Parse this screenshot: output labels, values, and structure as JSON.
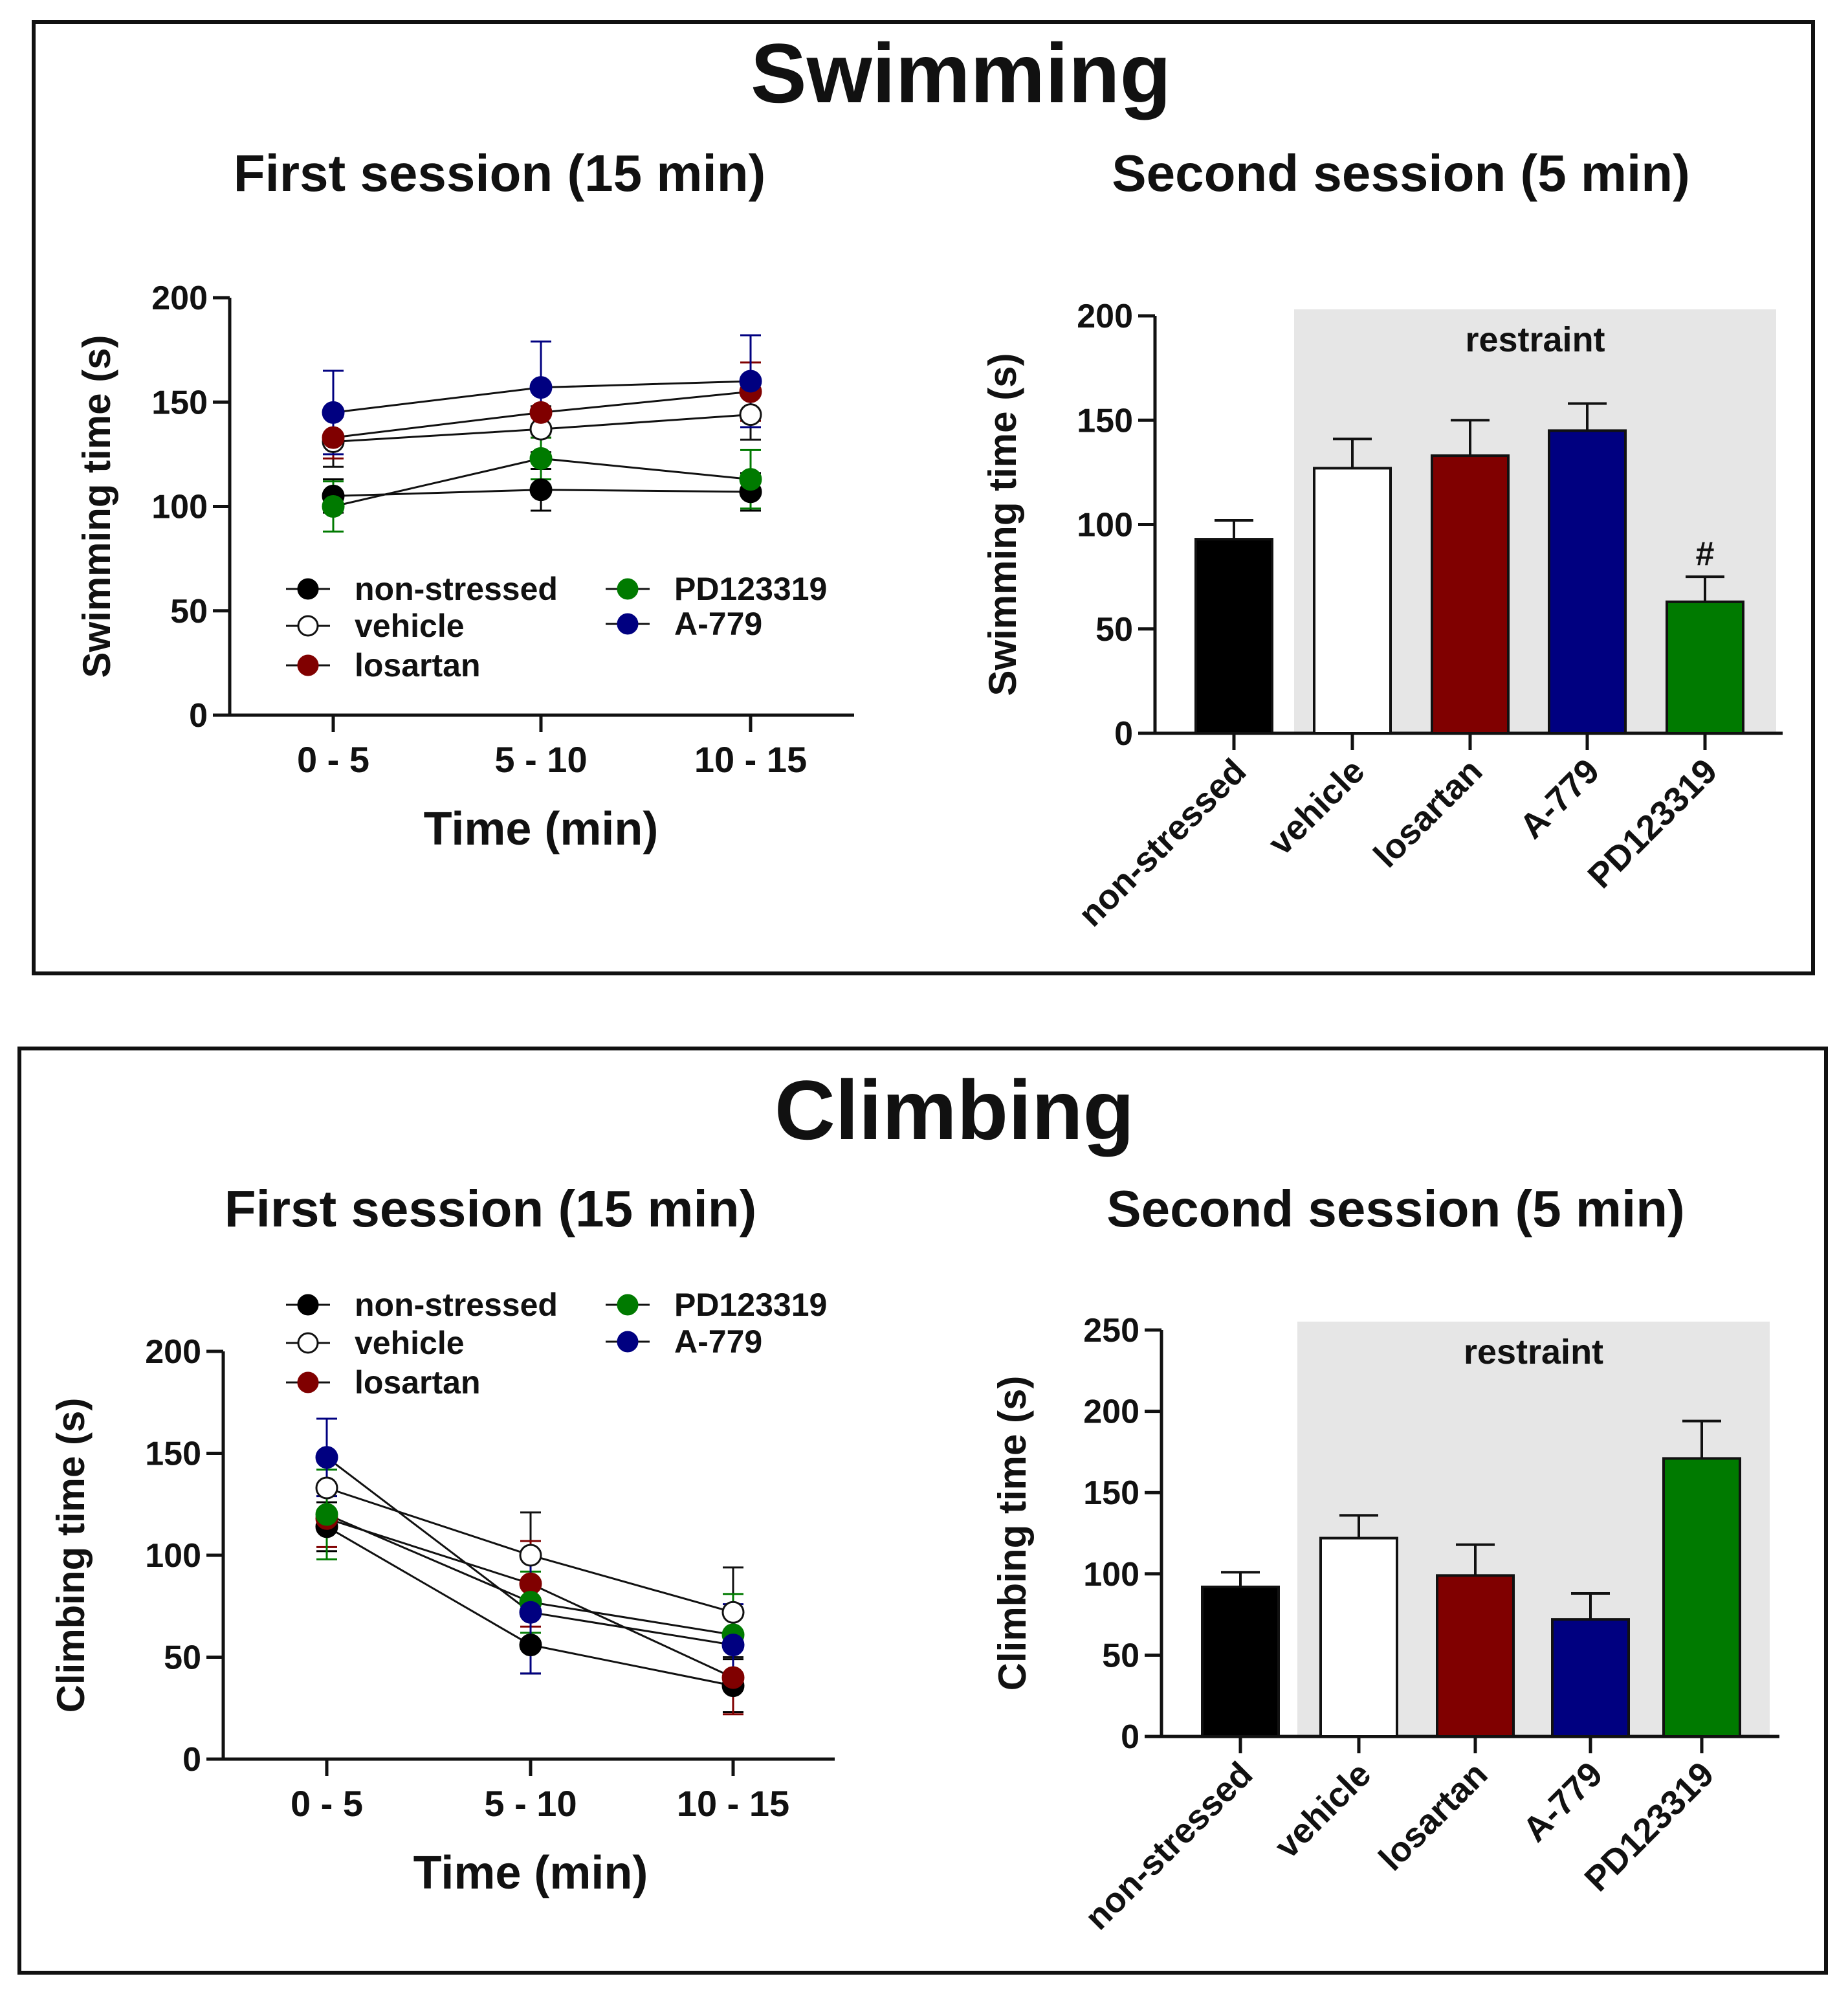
{
  "colors": {
    "non-stressed": "#000000",
    "vehicle": "#ffffff",
    "losartan": "#800000",
    "A-779": "#000080",
    "PD123319": "#007a00",
    "restraint_band": "#e6e6e6"
  },
  "panels": [
    {
      "title": "Swimming",
      "first_session_title": "First session (15 min)",
      "second_session_title": "Second session (5 min)"
    },
    {
      "title": "Climbing",
      "first_session_title": "First session (15 min)",
      "second_session_title": "Second session (5 min)"
    }
  ],
  "chart_data": [
    {
      "type": "line",
      "title": "First session (15 min)",
      "xlabel": "Time (min)",
      "ylabel": "Swimming time (s)",
      "categories": [
        "0 - 5",
        "5 - 10",
        "10 - 15"
      ],
      "ylim": [
        0,
        200
      ],
      "yticks": [
        0,
        50,
        100,
        150,
        200
      ],
      "legend": [
        "non-stressed",
        "vehicle",
        "losartan",
        "PD123319",
        "A-779"
      ],
      "series": [
        {
          "name": "non-stressed",
          "values": [
            105,
            108,
            107
          ],
          "errors": [
            8,
            10,
            9
          ]
        },
        {
          "name": "vehicle",
          "values": [
            131,
            137,
            144
          ],
          "errors": [
            12,
            11,
            12
          ]
        },
        {
          "name": "losartan",
          "values": [
            133,
            145,
            155
          ],
          "errors": [
            10,
            12,
            14
          ]
        },
        {
          "name": "PD123319",
          "values": [
            100,
            123,
            113
          ],
          "errors": [
            12,
            10,
            14
          ]
        },
        {
          "name": "A-779",
          "values": [
            145,
            157,
            160
          ],
          "errors": [
            20,
            22,
            22
          ]
        }
      ]
    },
    {
      "type": "bar",
      "title": "Second session (5 min)",
      "ylabel": "Swimming time (s)",
      "categories": [
        "non-stressed",
        "vehicle",
        "losartan",
        "A-779",
        "PD123319"
      ],
      "values": [
        93,
        127,
        133,
        145,
        63
      ],
      "errors": [
        9,
        14,
        17,
        13,
        12
      ],
      "ylim": [
        0,
        200
      ],
      "yticks": [
        0,
        50,
        100,
        150,
        200
      ],
      "band_label": "restraint",
      "annotations": [
        {
          "category": "PD123319",
          "text": "#"
        }
      ]
    },
    {
      "type": "line",
      "title": "First session (15 min)",
      "xlabel": "Time (min)",
      "ylabel": "Climbing time (s)",
      "categories": [
        "0 - 5",
        "5 - 10",
        "10 - 15"
      ],
      "ylim": [
        0,
        200
      ],
      "yticks": [
        0,
        50,
        100,
        150,
        200
      ],
      "legend": [
        "non-stressed",
        "vehicle",
        "losartan",
        "PD123319",
        "A-779"
      ],
      "series": [
        {
          "name": "non-stressed",
          "values": [
            114,
            56,
            36
          ],
          "errors": [
            12,
            14,
            13
          ]
        },
        {
          "name": "vehicle",
          "values": [
            133,
            100,
            72
          ],
          "errors": [
            14,
            21,
            22
          ]
        },
        {
          "name": "losartan",
          "values": [
            118,
            86,
            40
          ],
          "errors": [
            14,
            21,
            18
          ]
        },
        {
          "name": "PD123319",
          "values": [
            120,
            77,
            61
          ],
          "errors": [
            22,
            15,
            20
          ]
        },
        {
          "name": "A-779",
          "values": [
            148,
            72,
            56
          ],
          "errors": [
            19,
            30,
            20
          ]
        }
      ]
    },
    {
      "type": "bar",
      "title": "Second session (5 min)",
      "ylabel": "Climbing time (s)",
      "categories": [
        "non-stressed",
        "vehicle",
        "losartan",
        "A-779",
        "PD123319"
      ],
      "values": [
        92,
        122,
        99,
        72,
        171
      ],
      "errors": [
        9,
        14,
        19,
        16,
        23
      ],
      "ylim": [
        0,
        250
      ],
      "yticks": [
        0,
        50,
        100,
        150,
        200,
        250
      ],
      "band_label": "restraint",
      "annotations": []
    }
  ]
}
